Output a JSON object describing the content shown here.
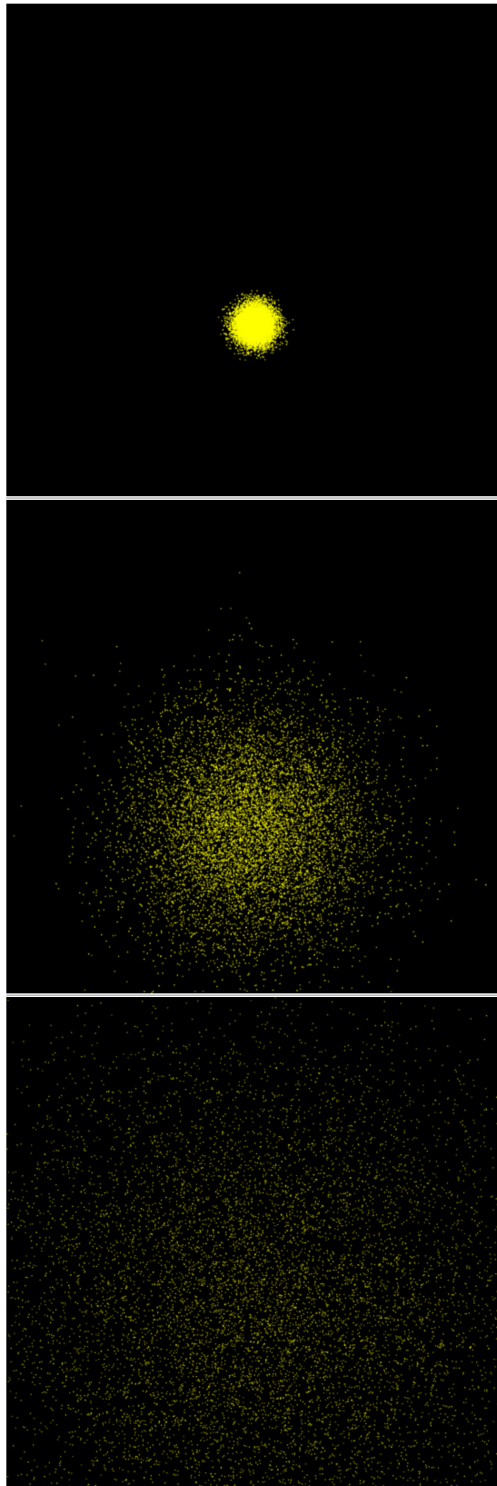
{
  "scene": {
    "background_color": "#000000",
    "divider_color": "#bfbfbf",
    "particle_color": "#ffff00",
    "panels": [
      {
        "id": "panel-1",
        "label": "",
        "spread": "tight",
        "particle_brightness": 1.0
      },
      {
        "id": "panel-2",
        "label": "",
        "spread": "medium",
        "particle_brightness": 0.85
      },
      {
        "id": "panel-3",
        "label": "",
        "spread": "wide",
        "particle_brightness": 0.7
      }
    ]
  }
}
